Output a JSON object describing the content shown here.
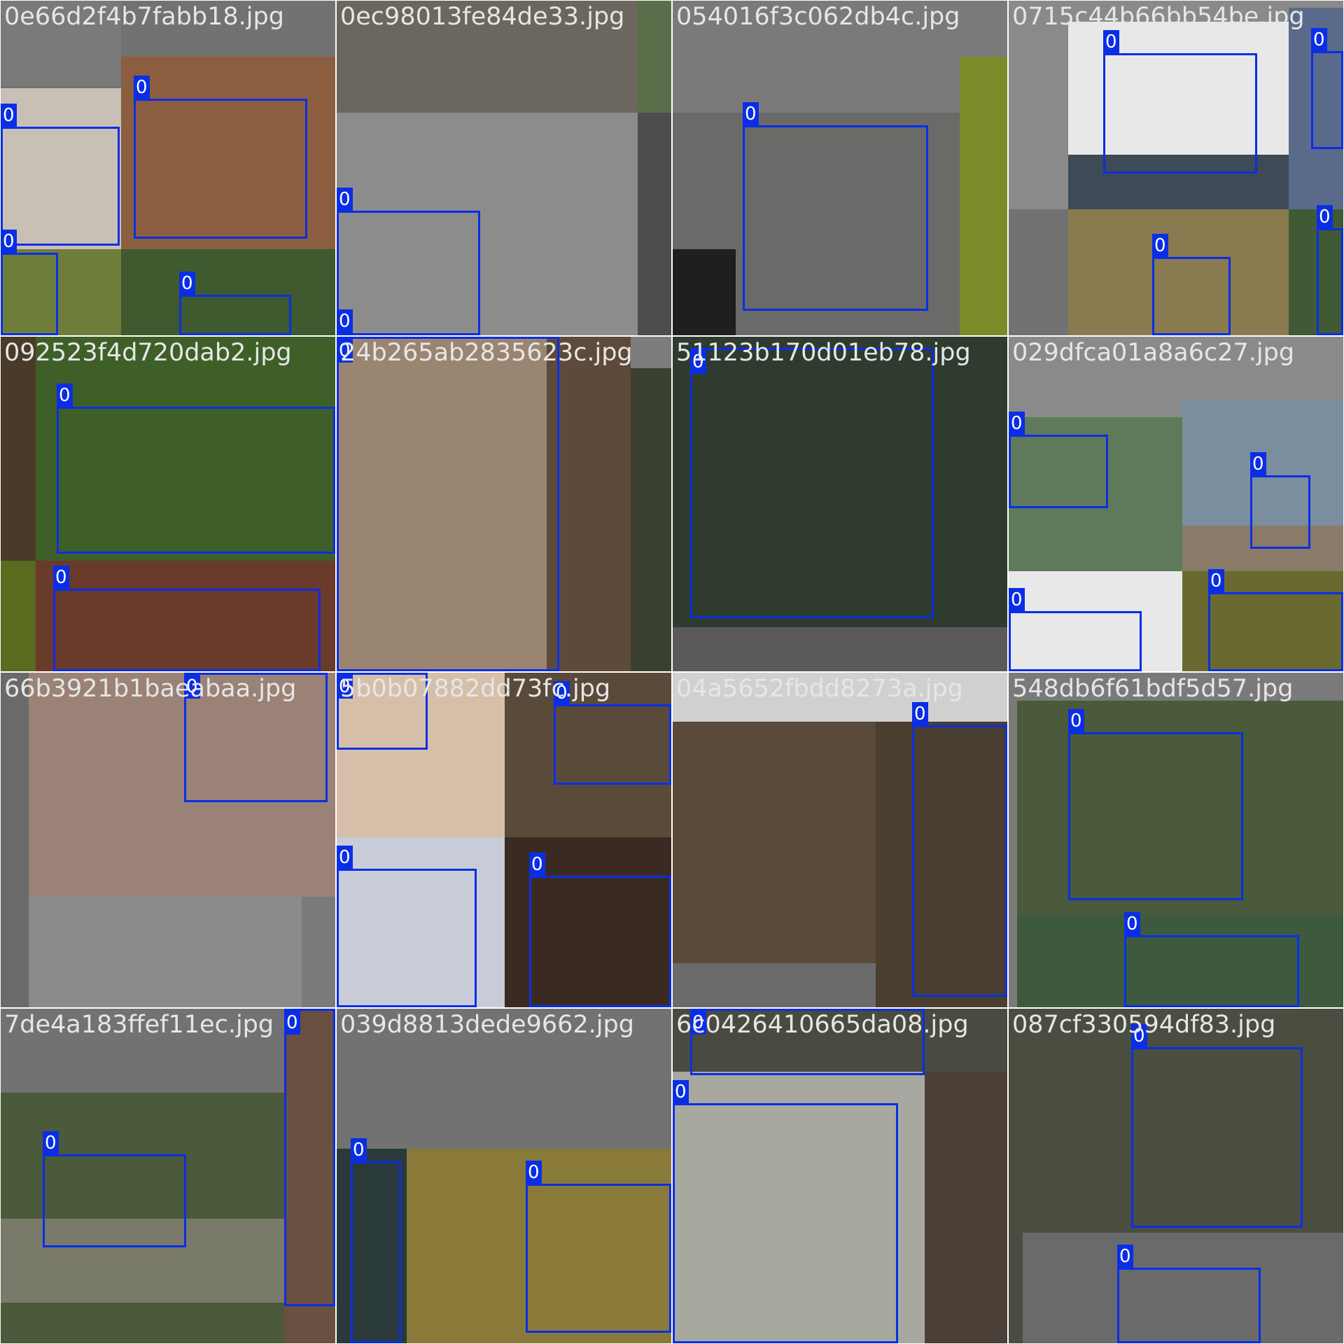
{
  "colors": {
    "box": "#0a2ee6",
    "label_bg": "#0a2ee6",
    "label_text": "#ffffff",
    "filename_text": "#e6e6e6",
    "pad_gray": "#727272"
  },
  "tiles": [
    {
      "filename": "0e66d2f4b7fabb18.jpg",
      "pieces": [
        {
          "l": 0,
          "t": 0,
          "w": 172,
          "h": 122,
          "c": "#7a7a7a"
        },
        {
          "l": 172,
          "t": 80,
          "w": 306,
          "h": 275,
          "c": "#8a5e3f"
        },
        {
          "l": 0,
          "t": 125,
          "w": 172,
          "h": 230,
          "c": "#c8c0b5"
        },
        {
          "l": 0,
          "t": 355,
          "w": 172,
          "h": 123,
          "c": "#6f7d3a"
        },
        {
          "l": 172,
          "t": 355,
          "w": 306,
          "h": 123,
          "c": "#3f5a2e"
        }
      ],
      "boxes": [
        {
          "l": 190,
          "t": 140,
          "w": 248,
          "h": 200,
          "label": "0"
        },
        {
          "l": 0,
          "t": 180,
          "w": 170,
          "h": 170,
          "label": "0"
        },
        {
          "l": 0,
          "t": 360,
          "w": 82,
          "h": 118,
          "label": "0"
        },
        {
          "l": 255,
          "t": 420,
          "w": 160,
          "h": 58,
          "label": "0"
        }
      ]
    },
    {
      "filename": "0ec98013fe84de33.jpg",
      "pieces": [
        {
          "l": 0,
          "t": 0,
          "w": 430,
          "h": 160,
          "c": "#6b665e"
        },
        {
          "l": 430,
          "t": 0,
          "w": 48,
          "h": 160,
          "c": "#5b6e4a"
        },
        {
          "l": 0,
          "t": 160,
          "w": 430,
          "h": 318,
          "c": "#8c8c8c"
        },
        {
          "l": 430,
          "t": 160,
          "w": 48,
          "h": 318,
          "c": "#4d4d4d"
        }
      ],
      "boxes": [
        {
          "l": 0,
          "t": 300,
          "w": 205,
          "h": 178,
          "label": "0"
        },
        {
          "l": 0,
          "t": 474,
          "w": 20,
          "h": 4,
          "label": "0"
        }
      ]
    },
    {
      "filename": "054016f3c062db4c.jpg",
      "pieces": [
        {
          "l": 0,
          "t": 0,
          "w": 478,
          "h": 160,
          "c": "#7a7a7a"
        },
        {
          "l": 0,
          "t": 160,
          "w": 410,
          "h": 318,
          "c": "#6a6a68"
        },
        {
          "l": 410,
          "t": 80,
          "w": 68,
          "h": 398,
          "c": "#7d8a2a"
        },
        {
          "l": 0,
          "t": 355,
          "w": 90,
          "h": 123,
          "c": "#1f1f1f"
        }
      ],
      "boxes": [
        {
          "l": 100,
          "t": 178,
          "w": 265,
          "h": 265,
          "label": "0"
        }
      ]
    },
    {
      "filename": "0715c44b66bb54be.jpg",
      "pieces": [
        {
          "l": 0,
          "t": 0,
          "w": 478,
          "h": 298,
          "c": "#8a8a8a"
        },
        {
          "l": 85,
          "t": 30,
          "w": 315,
          "h": 268,
          "c": "#e8e8e8"
        },
        {
          "l": 85,
          "t": 220,
          "w": 315,
          "h": 78,
          "c": "#3e4a55"
        },
        {
          "l": 400,
          "t": 10,
          "w": 78,
          "h": 288,
          "c": "#5a6a8a"
        },
        {
          "l": 85,
          "t": 298,
          "w": 315,
          "h": 180,
          "c": "#8a7a50"
        },
        {
          "l": 400,
          "t": 298,
          "w": 78,
          "h": 180,
          "c": "#3f5a35"
        }
      ],
      "boxes": [
        {
          "l": 135,
          "t": 75,
          "w": 220,
          "h": 172,
          "label": "0"
        },
        {
          "l": 432,
          "t": 72,
          "w": 46,
          "h": 140,
          "label": "0"
        },
        {
          "l": 205,
          "t": 366,
          "w": 112,
          "h": 112,
          "label": "0"
        },
        {
          "l": 440,
          "t": 325,
          "w": 38,
          "h": 153,
          "label": "0"
        }
      ]
    },
    {
      "filename": "092523f4d720dab2.jpg",
      "pieces": [
        {
          "l": 0,
          "t": 0,
          "w": 478,
          "h": 320,
          "c": "#3f5f28"
        },
        {
          "l": 0,
          "t": 0,
          "w": 50,
          "h": 320,
          "c": "#4a3a2a"
        },
        {
          "l": 0,
          "t": 320,
          "w": 50,
          "h": 158,
          "c": "#5a6a1e"
        },
        {
          "l": 50,
          "t": 320,
          "w": 428,
          "h": 158,
          "c": "#6a3a2a"
        }
      ],
      "boxes": [
        {
          "l": 80,
          "t": 100,
          "w": 398,
          "h": 210,
          "label": "0"
        },
        {
          "l": 75,
          "t": 360,
          "w": 382,
          "h": 118,
          "label": "0"
        }
      ]
    },
    {
      "filename": "24b265ab2835623c.jpg",
      "pieces": [
        {
          "l": 0,
          "t": 0,
          "w": 478,
          "h": 478,
          "c": "#7c7c7c"
        },
        {
          "l": 0,
          "t": 0,
          "w": 420,
          "h": 478,
          "c": "#9a8570"
        },
        {
          "l": 300,
          "t": 0,
          "w": 120,
          "h": 478,
          "c": "#5e4a3a"
        },
        {
          "l": 420,
          "t": 45,
          "w": 58,
          "h": 433,
          "c": "#3a4030"
        }
      ],
      "boxes": [
        {
          "l": 0,
          "t": 0,
          "w": 318,
          "h": 478,
          "label": "0"
        }
      ]
    },
    {
      "filename": "51123b170d01eb78.jpg",
      "pieces": [
        {
          "l": 0,
          "t": 0,
          "w": 478,
          "h": 478,
          "c": "#626262"
        },
        {
          "l": 0,
          "t": 0,
          "w": 478,
          "h": 415,
          "c": "#2e3b2e"
        },
        {
          "l": 0,
          "t": 415,
          "w": 478,
          "h": 63,
          "c": "#5a5a5a"
        }
      ],
      "boxes": [
        {
          "l": 25,
          "t": 16,
          "w": 348,
          "h": 386,
          "label": "0"
        }
      ]
    },
    {
      "filename": "029dfca01a8a6c27.jpg",
      "pieces": [
        {
          "l": 0,
          "t": 0,
          "w": 478,
          "h": 478,
          "c": "#8a8a8a"
        },
        {
          "l": 0,
          "t": 115,
          "w": 248,
          "h": 220,
          "c": "#5e7a5a"
        },
        {
          "l": 248,
          "t": 90,
          "w": 230,
          "h": 245,
          "c": "#7a8ea0"
        },
        {
          "l": 248,
          "t": 270,
          "w": 230,
          "h": 65,
          "c": "#8a7a68"
        },
        {
          "l": 0,
          "t": 335,
          "w": 248,
          "h": 143,
          "c": "#e8e8e8"
        },
        {
          "l": 248,
          "t": 335,
          "w": 230,
          "h": 143,
          "c": "#6a6a30"
        }
      ],
      "boxes": [
        {
          "l": 0,
          "t": 140,
          "w": 142,
          "h": 105,
          "label": "0"
        },
        {
          "l": 345,
          "t": 198,
          "w": 86,
          "h": 105,
          "label": "0"
        },
        {
          "l": 0,
          "t": 392,
          "w": 190,
          "h": 86,
          "label": "0"
        },
        {
          "l": 285,
          "t": 365,
          "w": 193,
          "h": 113,
          "label": "0"
        }
      ]
    },
    {
      "filename": "66b3921b1baeabaa.jpg",
      "pieces": [
        {
          "l": 0,
          "t": 0,
          "w": 478,
          "h": 478,
          "c": "#9a8276"
        },
        {
          "l": 0,
          "t": 0,
          "w": 40,
          "h": 478,
          "c": "#6a6a6a"
        },
        {
          "l": 40,
          "t": 320,
          "w": 390,
          "h": 158,
          "c": "#8a8a8a"
        },
        {
          "l": 430,
          "t": 320,
          "w": 48,
          "h": 158,
          "c": "#7a7a7a"
        }
      ],
      "boxes": [
        {
          "l": 262,
          "t": 0,
          "w": 205,
          "h": 185,
          "label": "0"
        }
      ]
    },
    {
      "filename": "5b0b07882dd73fc.jpg",
      "pieces": [
        {
          "l": 0,
          "t": 0,
          "w": 240,
          "h": 235,
          "c": "#d6bfa8"
        },
        {
          "l": 240,
          "t": 0,
          "w": 238,
          "h": 235,
          "c": "#5a4a3a"
        },
        {
          "l": 0,
          "t": 235,
          "w": 240,
          "h": 243,
          "c": "#c8ccd8"
        },
        {
          "l": 240,
          "t": 235,
          "w": 238,
          "h": 243,
          "c": "#3a2a22"
        }
      ],
      "boxes": [
        {
          "l": 0,
          "t": 0,
          "w": 130,
          "h": 110,
          "label": "0"
        },
        {
          "l": 310,
          "t": 45,
          "w": 168,
          "h": 115,
          "label": "0"
        },
        {
          "l": 0,
          "t": 280,
          "w": 200,
          "h": 198,
          "label": "0"
        },
        {
          "l": 275,
          "t": 290,
          "w": 203,
          "h": 188,
          "label": "0"
        }
      ]
    },
    {
      "filename": "04a5652fbdd8273a.jpg",
      "pieces": [
        {
          "l": 0,
          "t": 0,
          "w": 478,
          "h": 478,
          "c": "#6a6a6a"
        },
        {
          "l": 0,
          "t": 0,
          "w": 478,
          "h": 70,
          "c": "#d0d0d0"
        },
        {
          "l": 0,
          "t": 70,
          "w": 290,
          "h": 345,
          "c": "#5a4a3a"
        },
        {
          "l": 290,
          "t": 70,
          "w": 188,
          "h": 408,
          "c": "#4a3e30"
        }
      ],
      "boxes": [
        {
          "l": 342,
          "t": 75,
          "w": 136,
          "h": 388,
          "label": "0"
        }
      ]
    },
    {
      "filename": "548db6f61bdf5d57.jpg",
      "pieces": [
        {
          "l": 0,
          "t": 0,
          "w": 478,
          "h": 478,
          "c": "#7a7a7a"
        },
        {
          "l": 12,
          "t": 40,
          "w": 466,
          "h": 438,
          "c": "#4a5a3a"
        },
        {
          "l": 12,
          "t": 345,
          "w": 466,
          "h": 133,
          "c": "#3e5a3e"
        }
      ],
      "boxes": [
        {
          "l": 85,
          "t": 85,
          "w": 250,
          "h": 240,
          "label": "0"
        },
        {
          "l": 165,
          "t": 375,
          "w": 250,
          "h": 103,
          "label": "0"
        }
      ]
    },
    {
      "filename": "7de4a183ffef11ec.jpg",
      "pieces": [
        {
          "l": 0,
          "t": 0,
          "w": 478,
          "h": 478,
          "c": "#727272"
        },
        {
          "l": 0,
          "t": 120,
          "w": 405,
          "h": 358,
          "c": "#4a5a3a"
        },
        {
          "l": 0,
          "t": 300,
          "w": 405,
          "h": 120,
          "c": "#7a7a6a"
        },
        {
          "l": 405,
          "t": 0,
          "w": 73,
          "h": 478,
          "c": "#6a5040"
        }
      ],
      "boxes": [
        {
          "l": 60,
          "t": 208,
          "w": 205,
          "h": 133,
          "label": "0"
        },
        {
          "l": 405,
          "t": 0,
          "w": 73,
          "h": 425,
          "label": "0"
        }
      ]
    },
    {
      "filename": "039d8813dede9662.jpg",
      "pieces": [
        {
          "l": 0,
          "t": 0,
          "w": 478,
          "h": 478,
          "c": "#727272"
        },
        {
          "l": 0,
          "t": 200,
          "w": 100,
          "h": 278,
          "c": "#2a3a3a"
        },
        {
          "l": 100,
          "t": 200,
          "w": 378,
          "h": 278,
          "c": "#8a7a3a"
        }
      ],
      "boxes": [
        {
          "l": 20,
          "t": 218,
          "w": 72,
          "h": 260,
          "label": "0"
        },
        {
          "l": 270,
          "t": 250,
          "w": 208,
          "h": 213,
          "label": "0"
        }
      ]
    },
    {
      "filename": "6c0426410665da08.jpg",
      "pieces": [
        {
          "l": 0,
          "t": 0,
          "w": 478,
          "h": 478,
          "c": "#4a4a40"
        },
        {
          "l": 0,
          "t": 90,
          "w": 360,
          "h": 388,
          "c": "#a8a8a0"
        },
        {
          "l": 360,
          "t": 90,
          "w": 118,
          "h": 388,
          "c": "#4a4038"
        }
      ],
      "boxes": [
        {
          "l": 25,
          "t": 0,
          "w": 335,
          "h": 95,
          "label": "0"
        },
        {
          "l": 0,
          "t": 135,
          "w": 322,
          "h": 343,
          "label": "0"
        }
      ]
    },
    {
      "filename": "087cf330594df83.jpg",
      "pieces": [
        {
          "l": 0,
          "t": 0,
          "w": 478,
          "h": 478,
          "c": "#4a4e40"
        },
        {
          "l": 20,
          "t": 320,
          "w": 458,
          "h": 158,
          "c": "#6a6a6a"
        }
      ],
      "boxes": [
        {
          "l": 175,
          "t": 55,
          "w": 245,
          "h": 258,
          "label": "0"
        },
        {
          "l": 155,
          "t": 370,
          "w": 205,
          "h": 108,
          "label": "0"
        }
      ]
    }
  ]
}
